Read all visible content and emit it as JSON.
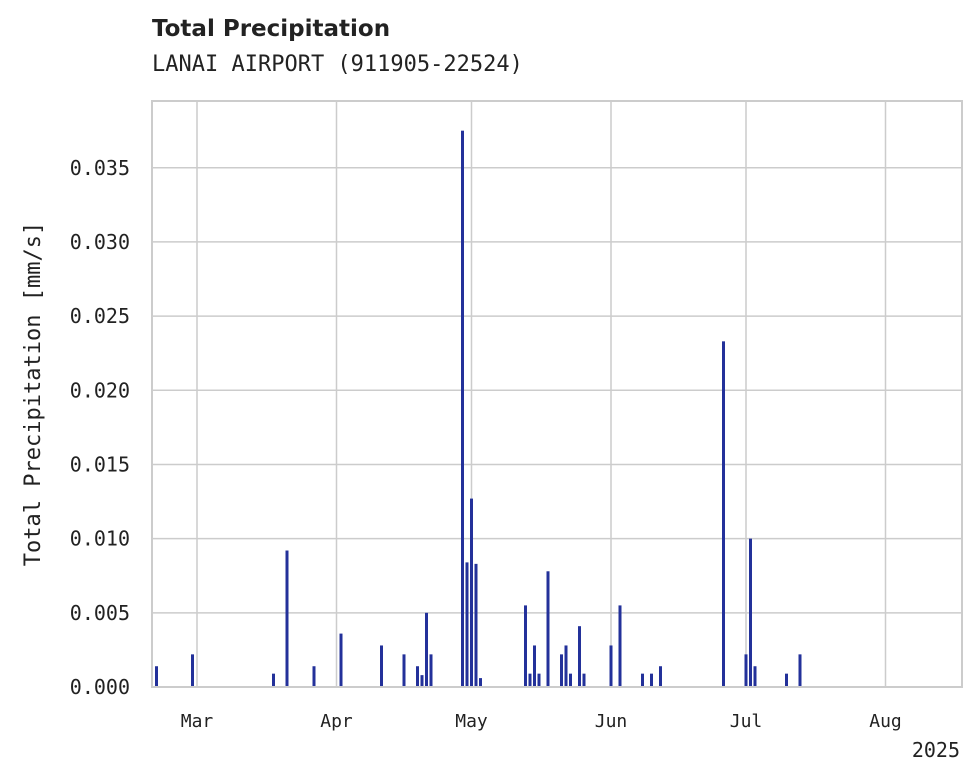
{
  "title": "Total Precipitation",
  "subtitle": "LANAI AIRPORT (911905-22524)",
  "colors": {
    "bar": "#23319a",
    "grid": "#cccccc",
    "axis": "#cccccc",
    "text": "#222222"
  },
  "chart_data": {
    "type": "bar",
    "ylabel": "Total Precipitation [mm/s]",
    "xlabel": "",
    "ylim": [
      0,
      0.0395
    ],
    "xlim": [
      "2025-02-19",
      "2025-08-18"
    ],
    "yticks": [
      0.0,
      0.005,
      0.01,
      0.015,
      0.02,
      0.025,
      0.03,
      0.035
    ],
    "ytick_labels": [
      "0.000",
      "0.005",
      "0.010",
      "0.015",
      "0.020",
      "0.025",
      "0.030",
      "0.035"
    ],
    "xticks": [
      "2025-03-01",
      "2025-04-01",
      "2025-05-01",
      "2025-06-01",
      "2025-07-01",
      "2025-08-01"
    ],
    "xtick_labels": [
      "Mar",
      "Apr",
      "May",
      "Jun",
      "Jul",
      "Aug"
    ],
    "x_offset_label": "2025",
    "grid": true,
    "legend": "none",
    "points": [
      {
        "x": "2025-02-20",
        "y": 0.0014
      },
      {
        "x": "2025-02-28",
        "y": 0.0022
      },
      {
        "x": "2025-03-18",
        "y": 0.0009
      },
      {
        "x": "2025-03-21",
        "y": 0.0092
      },
      {
        "x": "2025-03-27",
        "y": 0.0014
      },
      {
        "x": "2025-04-02",
        "y": 0.0036
      },
      {
        "x": "2025-04-11",
        "y": 0.0028
      },
      {
        "x": "2025-04-16",
        "y": 0.0022
      },
      {
        "x": "2025-04-19",
        "y": 0.0014
      },
      {
        "x": "2025-04-20",
        "y": 0.0008
      },
      {
        "x": "2025-04-21",
        "y": 0.005
      },
      {
        "x": "2025-04-22",
        "y": 0.0022
      },
      {
        "x": "2025-04-29",
        "y": 0.0375
      },
      {
        "x": "2025-04-30",
        "y": 0.0084
      },
      {
        "x": "2025-05-01",
        "y": 0.0127
      },
      {
        "x": "2025-05-02",
        "y": 0.0083
      },
      {
        "x": "2025-05-03",
        "y": 0.0006
      },
      {
        "x": "2025-05-13",
        "y": 0.0055
      },
      {
        "x": "2025-05-14",
        "y": 0.0009
      },
      {
        "x": "2025-05-15",
        "y": 0.0028
      },
      {
        "x": "2025-05-16",
        "y": 0.0009
      },
      {
        "x": "2025-05-18",
        "y": 0.0078
      },
      {
        "x": "2025-05-21",
        "y": 0.0022
      },
      {
        "x": "2025-05-22",
        "y": 0.0028
      },
      {
        "x": "2025-05-23",
        "y": 0.0009
      },
      {
        "x": "2025-05-25",
        "y": 0.0041
      },
      {
        "x": "2025-05-26",
        "y": 0.0009
      },
      {
        "x": "2025-06-01",
        "y": 0.0028
      },
      {
        "x": "2025-06-03",
        "y": 0.0055
      },
      {
        "x": "2025-06-08",
        "y": 0.0009
      },
      {
        "x": "2025-06-10",
        "y": 0.0009
      },
      {
        "x": "2025-06-12",
        "y": 0.0014
      },
      {
        "x": "2025-06-26",
        "y": 0.0233
      },
      {
        "x": "2025-07-01",
        "y": 0.0022
      },
      {
        "x": "2025-07-02",
        "y": 0.01
      },
      {
        "x": "2025-07-03",
        "y": 0.0014
      },
      {
        "x": "2025-07-10",
        "y": 0.0009
      },
      {
        "x": "2025-07-13",
        "y": 0.0022
      }
    ]
  }
}
